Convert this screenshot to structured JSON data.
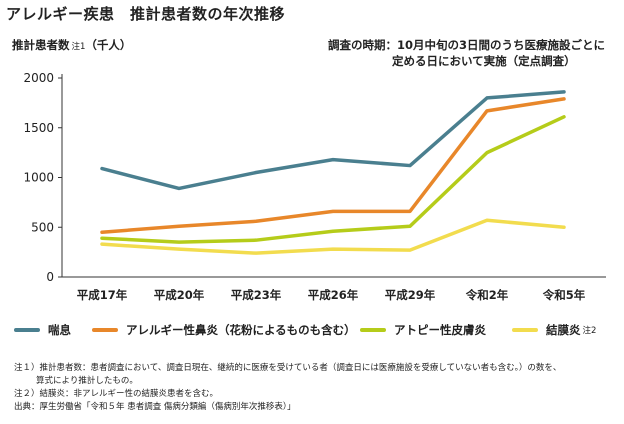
{
  "title": "アレルギー疾患　推計患者数の年次推移",
  "y_axis_label": "推計患者数",
  "y_axis_note": "注1",
  "y_axis_unit": "（千人）",
  "survey_line1": "調査の時期：10月中旬の3日間のうち医療施設ごとに",
  "survey_line2": "定める日において実施（定点調査）",
  "colors": {
    "asthma": "#4a7f8f",
    "rhinitis": "#e8872a",
    "dermatitis": "#b5cc1a",
    "conjunctivitis": "#f2dc4e",
    "axis": "#333333"
  },
  "legend": [
    {
      "label": "喘息",
      "note": ""
    },
    {
      "label": "アレルギー性鼻炎（花粉によるものも含む）",
      "note": ""
    },
    {
      "label": "アトピー性皮膚炎",
      "note": ""
    },
    {
      "label": "結膜炎",
      "note": "注2"
    }
  ],
  "chart_data": {
    "type": "line",
    "categories": [
      "平成17年",
      "平成20年",
      "平成23年",
      "平成26年",
      "平成29年",
      "令和2年",
      "令和5年"
    ],
    "ylim": [
      0,
      2000
    ],
    "yticks": [
      "0",
      "500",
      "1000",
      "1500",
      "2000"
    ],
    "grid": false,
    "series": [
      {
        "name": "喘息",
        "values": [
          1090,
          890,
          1050,
          1180,
          1120,
          1800,
          1860
        ]
      },
      {
        "name": "アレルギー性鼻炎（花粉によるものも含む）",
        "values": [
          450,
          510,
          560,
          660,
          660,
          1670,
          1790
        ]
      },
      {
        "name": "アトピー性皮膚炎",
        "values": [
          390,
          350,
          370,
          460,
          510,
          1250,
          1610
        ]
      },
      {
        "name": "結膜炎",
        "values": [
          330,
          280,
          240,
          280,
          270,
          570,
          500
        ]
      }
    ]
  },
  "notes": [
    "注１）推計患者数：患者調査において、調査日現在、継続的に医療を受けている者（調査日には医療施設を受療していない者も含む。）の数を、",
    "算式により推計したもの。",
    "注２）結膜炎：非アレルギー性の結膜炎患者を含む。",
    "出典：厚生労働省「令和５年 患者調査 傷病分類編（傷病別年次推移表）」"
  ]
}
